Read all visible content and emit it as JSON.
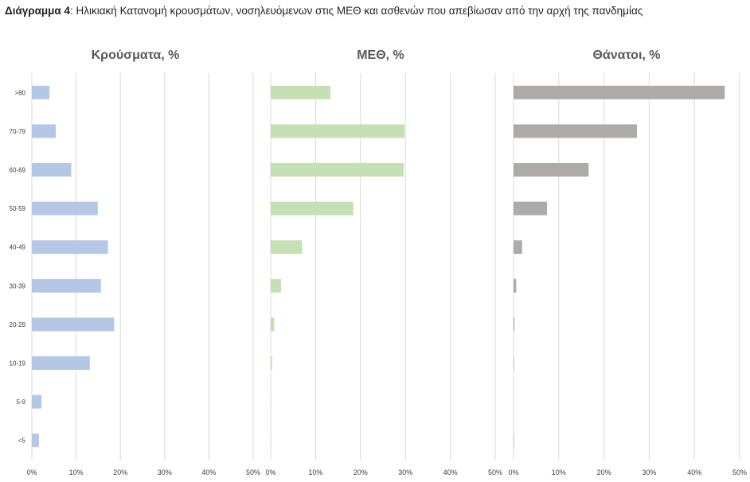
{
  "caption": {
    "label": "Διάγραμμα 4",
    "text": ": Ηλικιακή Κατανομή κρουσμάτων, νοσηλευόμενων στις ΜΕΘ και ασθενών που απεβίωσαν από την αρχή της πανδημίας"
  },
  "chart_data": [
    {
      "type": "bar",
      "orientation": "horizontal",
      "title": "Κρούσματα, %",
      "color": "#b4c7e7",
      "categories": [
        ">80",
        "70-79",
        "60-69",
        "50-59",
        "40-49",
        "30-39",
        "20-29",
        "10-19",
        "5-9",
        "<5"
      ],
      "values": [
        4.0,
        5.4,
        8.9,
        14.9,
        17.2,
        15.6,
        18.6,
        13.1,
        2.2,
        1.6
      ],
      "xlim": [
        0,
        50
      ],
      "xticks": [
        "0%",
        "10%",
        "20%",
        "30%",
        "40%",
        "50%"
      ],
      "grid": true
    },
    {
      "type": "bar",
      "orientation": "horizontal",
      "title": "ΜΕΘ, %",
      "color": "#c5e0b4",
      "categories": [
        ">80",
        "70-79",
        "60-69",
        "50-59",
        "40-49",
        "30-39",
        "20-29",
        "10-19",
        "5-9",
        "<5"
      ],
      "values": [
        13.3,
        29.8,
        29.6,
        18.4,
        7.0,
        2.3,
        0.8,
        0.3,
        0.1,
        0.1
      ],
      "xlim": [
        0,
        50
      ],
      "xticks": [
        "0%",
        "10%",
        "20%",
        "30%",
        "40%",
        "50%"
      ],
      "grid": true
    },
    {
      "type": "bar",
      "orientation": "horizontal",
      "title": "Θάνατοι, %",
      "color": "#aeaaaa",
      "categories": [
        ">80",
        "70-79",
        "60-69",
        "50-59",
        "40-49",
        "30-39",
        "20-29",
        "10-19",
        "5-9",
        "<5"
      ],
      "values": [
        46.7,
        27.3,
        16.6,
        7.4,
        1.9,
        0.6,
        0.2,
        0.1,
        0.0,
        0.1
      ],
      "xlim": [
        0,
        50
      ],
      "xticks": [
        "0%",
        "10%",
        "20%",
        "30%",
        "40%",
        "50%"
      ],
      "grid": true
    }
  ]
}
